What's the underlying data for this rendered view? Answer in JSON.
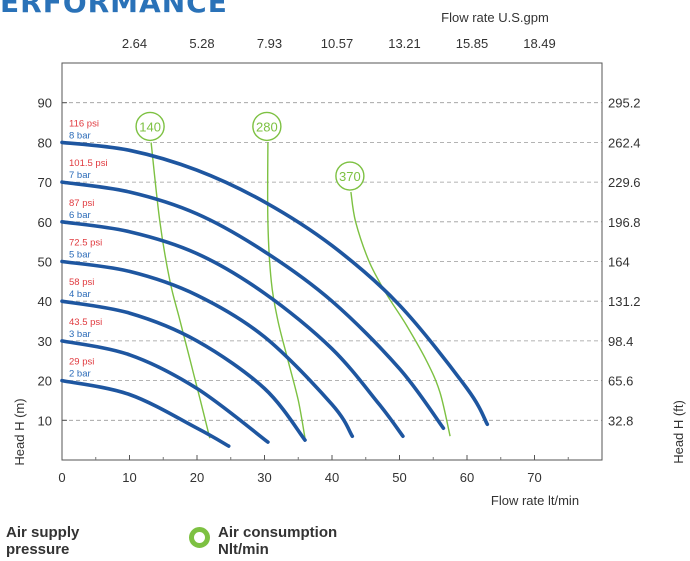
{
  "heading": "ERFORMANCE",
  "chart_data": {
    "type": "line",
    "xlabel": "Flow rate  lt/min",
    "xlim": [
      0,
      80
    ],
    "x_ticks": [
      "0",
      "10",
      "20",
      "30",
      "40",
      "50",
      "60",
      "70"
    ],
    "ylabel": "Head H (m)",
    "ylim": [
      0,
      100
    ],
    "y_ticks": [
      "10",
      "20",
      "30",
      "40",
      "50",
      "60",
      "70",
      "80",
      "90"
    ],
    "top_axis": {
      "label": "Flow rate U.S.gpm",
      "ticks": [
        {
          "x": 10,
          "label": "2.64"
        },
        {
          "x": 20,
          "label": "5.28"
        },
        {
          "x": 30,
          "label": "7.93"
        },
        {
          "x": 40,
          "label": "10.57"
        },
        {
          "x": 50,
          "label": "13.21"
        },
        {
          "x": 60,
          "label": "15.85"
        },
        {
          "x": 70,
          "label": "18.49"
        }
      ]
    },
    "right_axis": {
      "label": "Head H (ft)",
      "ticks": [
        {
          "y": 10,
          "label": "32.8"
        },
        {
          "y": 20,
          "label": "65.6"
        },
        {
          "y": 30,
          "label": "98.4"
        },
        {
          "y": 40,
          "label": "131.2"
        },
        {
          "y": 50,
          "label": "164"
        },
        {
          "y": 60,
          "label": "196.8"
        },
        {
          "y": 70,
          "label": "229.6"
        },
        {
          "y": 80,
          "label": "262.4"
        },
        {
          "y": 90,
          "label": "295.2"
        }
      ]
    },
    "grid": true,
    "series": [
      {
        "psi": "116 psi",
        "bar": "8 bar",
        "x": [
          0,
          10,
          20,
          30,
          40,
          50,
          60,
          63
        ],
        "y": [
          80,
          78,
          73,
          65,
          54,
          39,
          18,
          9
        ]
      },
      {
        "psi": "101.5 psi",
        "bar": "7 bar",
        "x": [
          0,
          10,
          20,
          30,
          40,
          50,
          56.5
        ],
        "y": [
          70,
          67.5,
          62,
          52.5,
          40,
          23,
          8
        ]
      },
      {
        "psi": "87 psi",
        "bar": "6 bar",
        "x": [
          0,
          10,
          20,
          30,
          40,
          47,
          50.5
        ],
        "y": [
          60,
          57.5,
          52,
          42,
          28,
          14,
          6
        ]
      },
      {
        "psi": "72.5 psi",
        "bar": "5 bar",
        "x": [
          0,
          10,
          20,
          30,
          40,
          43
        ],
        "y": [
          50,
          47.5,
          41.5,
          31,
          14,
          6
        ]
      },
      {
        "psi": "58 psi",
        "bar": "4 bar",
        "x": [
          0,
          10,
          20,
          30,
          36
        ],
        "y": [
          40,
          37,
          30,
          18,
          5
        ]
      },
      {
        "psi": "43.5 psi",
        "bar": "3 bar",
        "x": [
          0,
          10,
          20,
          30.5
        ],
        "y": [
          30,
          26.5,
          18,
          4.5
        ]
      },
      {
        "psi": "29 psi",
        "bar": "2 bar",
        "x": [
          0,
          10,
          20,
          24.7
        ],
        "y": [
          20,
          16.5,
          8,
          3.5
        ]
      }
    ],
    "air_consumption": [
      {
        "label": "140",
        "x": [
          13.2,
          14.5,
          16,
          17.5,
          19,
          20.5,
          21.9
        ],
        "y": [
          80,
          60,
          45,
          35,
          25,
          15,
          5.5
        ]
      },
      {
        "label": "280",
        "x": [
          30.5,
          30.5,
          31,
          32,
          33.5,
          35,
          36
        ],
        "y": [
          80,
          60,
          45,
          35,
          25,
          15,
          5.5
        ]
      },
      {
        "label": "370",
        "x": [
          42.8,
          43.5,
          45.5,
          48,
          51,
          54,
          56,
          57.5
        ],
        "y": [
          67.5,
          60,
          50,
          42,
          34,
          25,
          17,
          6
        ]
      }
    ],
    "air_labels_color": "#7dc142",
    "pressure_color": "#1e56a0",
    "psi_color": "#e0393e",
    "bar_color": "#2b6bb8"
  },
  "legend": {
    "pressure_label_line1": "Air supply",
    "pressure_label_line2": "pressure",
    "air_label_line1": "Air consumption",
    "air_label_line2": "Nlt/min"
  }
}
